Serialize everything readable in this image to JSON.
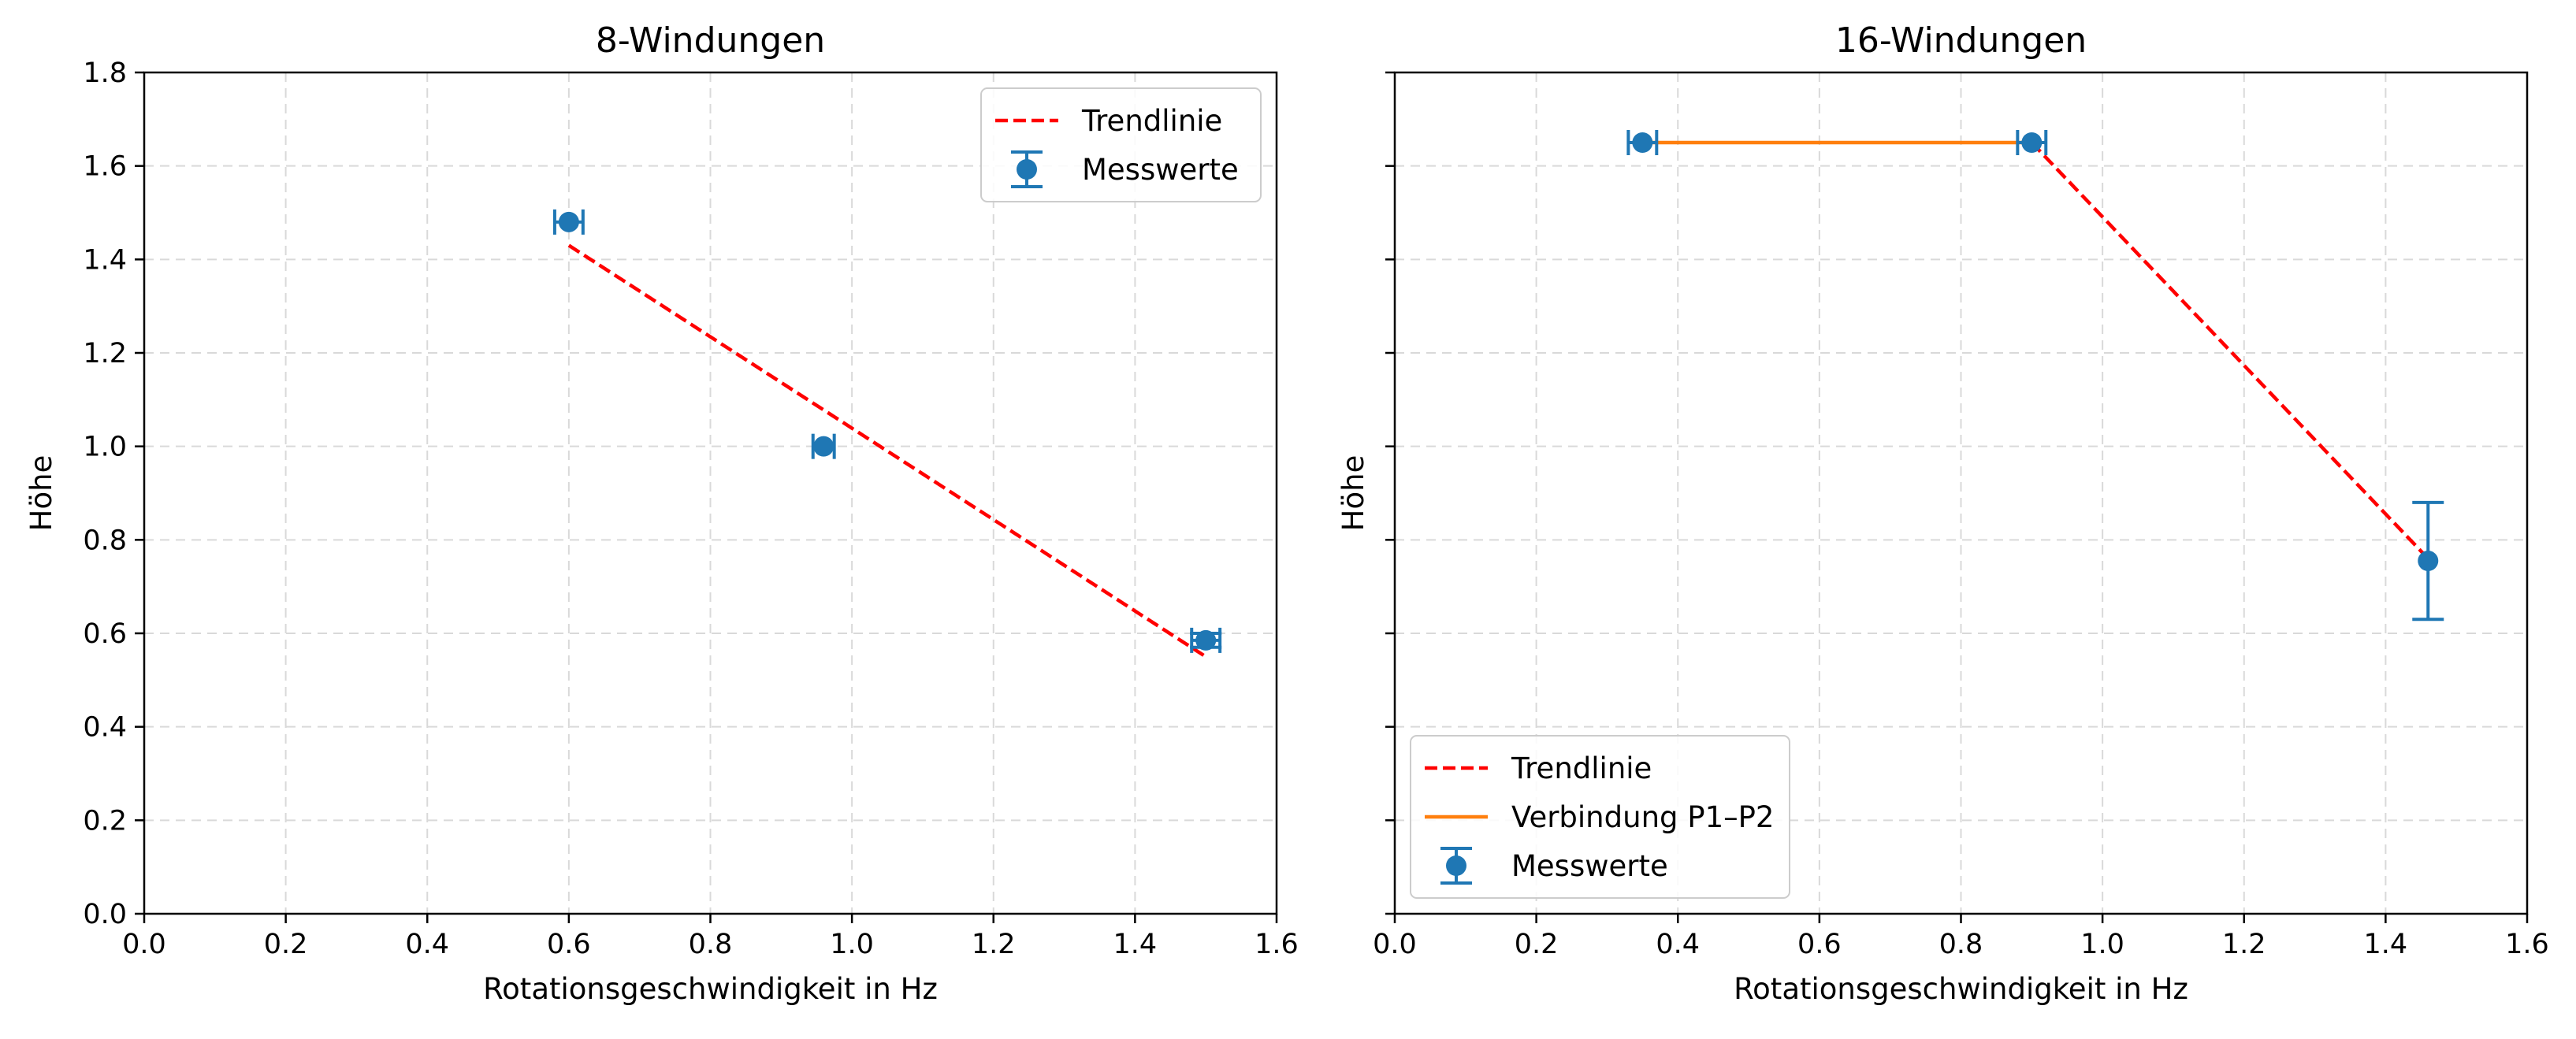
{
  "chart_data": [
    {
      "type": "scatter",
      "title": "8-Windungen",
      "xlabel": "Rotationsgeschwindigkeit in Hz",
      "ylabel": "Höhe",
      "xlim": [
        0.0,
        1.6
      ],
      "ylim": [
        0.0,
        1.8
      ],
      "xticks": [
        "0.0",
        "0.2",
        "0.4",
        "0.6",
        "0.8",
        "1.0",
        "1.2",
        "1.4",
        "1.6"
      ],
      "yticks": [
        "0.0",
        "0.2",
        "0.4",
        "0.6",
        "0.8",
        "1.0",
        "1.2",
        "1.4",
        "1.6",
        "1.8"
      ],
      "grid": true,
      "legend_position": "top-right",
      "series": [
        {
          "name": "Trendlinie",
          "kind": "line",
          "style": "dashed",
          "color": "#ff0000",
          "x": [
            0.6,
            1.5
          ],
          "y": [
            1.43,
            0.55
          ]
        },
        {
          "name": "Messwerte",
          "kind": "errorbar",
          "color": "#1f77b4",
          "x": [
            0.6,
            0.96,
            1.5
          ],
          "y": [
            1.48,
            1.0,
            0.585
          ],
          "xerr": [
            0.02,
            0.015,
            0.02
          ],
          "yerr": [
            0.0,
            0.0,
            0.015
          ]
        }
      ]
    },
    {
      "type": "scatter",
      "title": "16-Windungen",
      "xlabel": "Rotationsgeschwindigkeit in Hz",
      "ylabel": "Höhe",
      "xlim": [
        0.0,
        1.6
      ],
      "ylim": [
        0.0,
        1.8
      ],
      "xticks": [
        "0.0",
        "0.2",
        "0.4",
        "0.6",
        "0.8",
        "1.0",
        "1.2",
        "1.4",
        "1.6"
      ],
      "yticks": [],
      "grid": true,
      "legend_position": "bottom-left",
      "series": [
        {
          "name": "Trendlinie",
          "kind": "line",
          "style": "dashed",
          "color": "#ff0000",
          "x": [
            0.9,
            1.46
          ],
          "y": [
            1.65,
            0.76
          ]
        },
        {
          "name": "Verbindung P1–P2",
          "kind": "line",
          "style": "solid",
          "color": "#ff7f0e",
          "x": [
            0.35,
            0.9
          ],
          "y": [
            1.65,
            1.65
          ]
        },
        {
          "name": "Messwerte",
          "kind": "errorbar",
          "color": "#1f77b4",
          "x": [
            0.35,
            0.9,
            1.46
          ],
          "y": [
            1.65,
            1.65,
            0.755
          ],
          "xerr": [
            0.02,
            0.02,
            0.0
          ],
          "yerr": [
            0.0,
            0.0,
            0.125
          ]
        }
      ]
    }
  ]
}
